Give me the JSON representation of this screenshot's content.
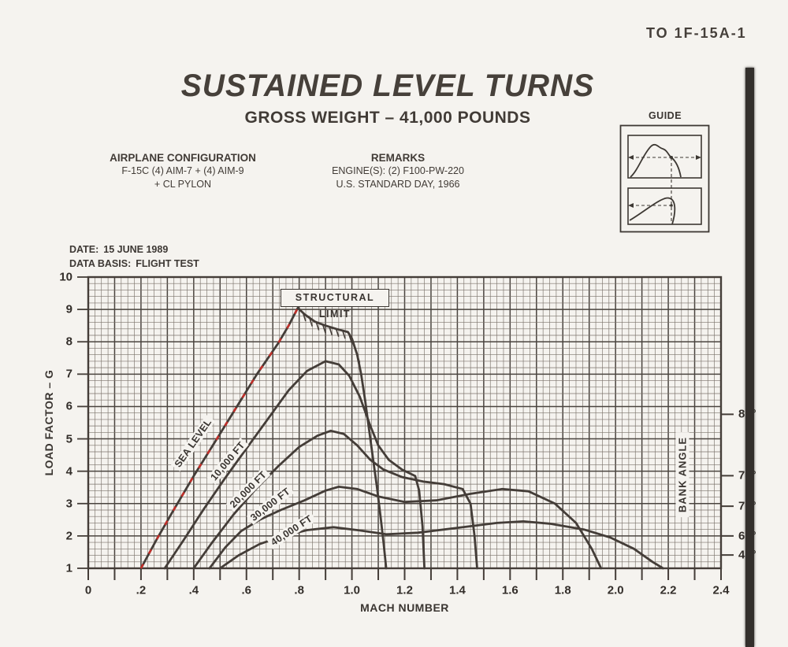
{
  "doc_ref": "TO 1F-15A-1",
  "header": {
    "title": "SUSTAINED LEVEL TURNS",
    "subtitle": "GROSS WEIGHT – 41,000 POUNDS"
  },
  "configuration": {
    "heading": "AIRPLANE CONFIGURATION",
    "line1": "F-15C (4) AIM-7 + (4) AIM-9",
    "line2": "+ CL PYLON"
  },
  "remarks": {
    "heading": "REMARKS",
    "line1": "ENGINE(S): (2) F100-PW-220",
    "line2": "U.S. STANDARD DAY, 1966"
  },
  "guide": {
    "label": "GUIDE"
  },
  "meta": {
    "date_label": "DATE:",
    "date_value": "15 JUNE 1989",
    "basis_label": "DATA BASIS:",
    "basis_value": "FLIGHT TEST"
  },
  "chart_data": {
    "type": "line",
    "title": "SUSTAINED LEVEL TURNS — GROSS WEIGHT 41,000 POUNDS",
    "xlabel": "MACH NUMBER",
    "ylabel": "LOAD FACTOR – G",
    "xlim": [
      0,
      2.4
    ],
    "ylim": [
      1,
      10
    ],
    "grid": {
      "minor_mach": 0.025,
      "minor_g": 0.2,
      "major_mach": 0.1,
      "major_g": 1,
      "style": "fine graph paper"
    },
    "x_tick_labels": [
      "0",
      ".2",
      ".4",
      ".6",
      ".8",
      "1.0",
      "1.2",
      "1.4",
      "1.6",
      "1.8",
      "2.0",
      "2.2",
      "2.4"
    ],
    "x_tick_label_step": 0.2,
    "x_tick_minor_step": 0.1,
    "y_tick_labels": [
      "1",
      "2",
      "3",
      "4",
      "5",
      "6",
      "7",
      "8",
      "9",
      "10"
    ],
    "ink_color": "#443d38",
    "bank_angle": {
      "title": "BANK ANGLE",
      "ticks": [
        {
          "label": "80°",
          "g": 5.76
        },
        {
          "label": "75°",
          "g": 3.86
        },
        {
          "label": "70°",
          "g": 2.92
        },
        {
          "label": "60°",
          "g": 2.0
        },
        {
          "label": "45°",
          "g": 1.41
        }
      ]
    },
    "structural_limit": {
      "label": "STRUCTURAL LIMIT",
      "hatches": [
        [
          0.815,
          8.88
        ],
        [
          0.84,
          8.72
        ],
        [
          0.865,
          8.6
        ],
        [
          0.89,
          8.52
        ],
        [
          0.915,
          8.45
        ],
        [
          0.94,
          8.4
        ],
        [
          0.965,
          8.34
        ],
        [
          0.99,
          8.2
        ],
        [
          1.005,
          7.95
        ],
        [
          1.02,
          7.6
        ]
      ]
    },
    "red_reference_line": {
      "color": "#c22f2a",
      "note": "red dashed overlay along SEA LEVEL climb to structural limit",
      "points": [
        [
          0.2,
          1.0
        ],
        [
          0.26,
          1.9
        ],
        [
          0.32,
          2.75
        ],
        [
          0.4,
          3.85
        ],
        [
          0.48,
          4.9
        ],
        [
          0.56,
          5.95
        ],
        [
          0.64,
          7.0
        ],
        [
          0.72,
          7.95
        ],
        [
          0.76,
          8.5
        ],
        [
          0.795,
          9.05
        ]
      ]
    },
    "series": [
      {
        "name": "SEA LEVEL",
        "label_at": [
          0.397,
          4.87
        ],
        "label_angle": -55,
        "points": [
          [
            0.2,
            1.0
          ],
          [
            0.26,
            1.9
          ],
          [
            0.32,
            2.75
          ],
          [
            0.4,
            3.85
          ],
          [
            0.48,
            4.9
          ],
          [
            0.56,
            5.95
          ],
          [
            0.64,
            7.0
          ],
          [
            0.72,
            7.95
          ],
          [
            0.76,
            8.5
          ],
          [
            0.795,
            9.05
          ],
          [
            0.82,
            8.85
          ],
          [
            0.86,
            8.62
          ],
          [
            0.9,
            8.5
          ],
          [
            0.94,
            8.4
          ],
          [
            0.985,
            8.3
          ],
          [
            1.0,
            8.1
          ],
          [
            1.02,
            7.6
          ],
          [
            1.035,
            7.0
          ],
          [
            1.05,
            6.2
          ],
          [
            1.065,
            5.3
          ],
          [
            1.08,
            4.4
          ],
          [
            1.095,
            3.5
          ],
          [
            1.11,
            2.5
          ],
          [
            1.12,
            1.8
          ],
          [
            1.13,
            1.0
          ]
        ]
      },
      {
        "name": "10,000 FT",
        "label_at": [
          0.529,
          4.31
        ],
        "label_angle": -50,
        "points": [
          [
            0.29,
            1.0
          ],
          [
            0.36,
            1.85
          ],
          [
            0.44,
            2.85
          ],
          [
            0.52,
            3.8
          ],
          [
            0.6,
            4.7
          ],
          [
            0.68,
            5.6
          ],
          [
            0.76,
            6.5
          ],
          [
            0.83,
            7.1
          ],
          [
            0.9,
            7.4
          ],
          [
            0.95,
            7.3
          ],
          [
            0.99,
            6.95
          ],
          [
            1.03,
            6.3
          ],
          [
            1.07,
            5.4
          ],
          [
            1.1,
            4.8
          ],
          [
            1.14,
            4.35
          ],
          [
            1.19,
            4.05
          ],
          [
            1.24,
            3.85
          ],
          [
            1.255,
            3.4
          ],
          [
            1.268,
            2.3
          ],
          [
            1.275,
            1.0
          ]
        ]
      },
      {
        "name": "20,000 FT",
        "label_at": [
          0.607,
          3.43
        ],
        "label_angle": -45,
        "points": [
          [
            0.4,
            1.0
          ],
          [
            0.47,
            1.8
          ],
          [
            0.55,
            2.65
          ],
          [
            0.63,
            3.4
          ],
          [
            0.72,
            4.15
          ],
          [
            0.8,
            4.75
          ],
          [
            0.87,
            5.1
          ],
          [
            0.92,
            5.25
          ],
          [
            0.97,
            5.15
          ],
          [
            1.02,
            4.8
          ],
          [
            1.07,
            4.35
          ],
          [
            1.12,
            4.05
          ],
          [
            1.19,
            3.82
          ],
          [
            1.27,
            3.68
          ],
          [
            1.35,
            3.6
          ],
          [
            1.42,
            3.45
          ],
          [
            1.45,
            3.0
          ],
          [
            1.465,
            2.0
          ],
          [
            1.475,
            1.0
          ]
        ]
      },
      {
        "name": "30,000 FT",
        "label_at": [
          0.69,
          2.97
        ],
        "label_angle": -38,
        "points": [
          [
            0.46,
            1.0
          ],
          [
            0.52,
            1.65
          ],
          [
            0.58,
            2.15
          ],
          [
            0.65,
            2.5
          ],
          [
            0.73,
            2.8
          ],
          [
            0.82,
            3.1
          ],
          [
            0.9,
            3.4
          ],
          [
            0.95,
            3.52
          ],
          [
            1.02,
            3.45
          ],
          [
            1.1,
            3.22
          ],
          [
            1.2,
            3.05
          ],
          [
            1.32,
            3.1
          ],
          [
            1.45,
            3.3
          ],
          [
            1.57,
            3.45
          ],
          [
            1.67,
            3.38
          ],
          [
            1.77,
            3.0
          ],
          [
            1.85,
            2.4
          ],
          [
            1.91,
            1.6
          ],
          [
            1.945,
            1.0
          ]
        ]
      },
      {
        "name": "40,000 FT",
        "label_at": [
          0.771,
          2.17
        ],
        "label_angle": -33,
        "points": [
          [
            0.5,
            1.0
          ],
          [
            0.57,
            1.4
          ],
          [
            0.65,
            1.75
          ],
          [
            0.74,
            2.0
          ],
          [
            0.83,
            2.18
          ],
          [
            0.93,
            2.27
          ],
          [
            1.03,
            2.17
          ],
          [
            1.13,
            2.05
          ],
          [
            1.25,
            2.1
          ],
          [
            1.4,
            2.25
          ],
          [
            1.55,
            2.4
          ],
          [
            1.65,
            2.45
          ],
          [
            1.75,
            2.38
          ],
          [
            1.88,
            2.2
          ],
          [
            1.98,
            1.95
          ],
          [
            2.07,
            1.6
          ],
          [
            2.14,
            1.2
          ],
          [
            2.18,
            1.0
          ]
        ]
      }
    ]
  }
}
